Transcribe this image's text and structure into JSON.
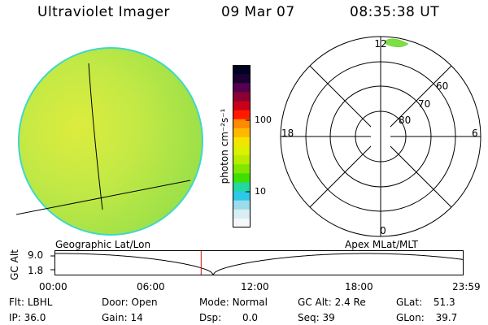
{
  "header": {
    "instrument": "Ultraviolet Imager",
    "date": "09 Mar 07",
    "time": "08:35:38 UT"
  },
  "colorbar": {
    "unit_label": "photon cm⁻²s⁻¹",
    "ticks": [
      "100",
      "10"
    ],
    "colors": [
      "#000022",
      "#1a0033",
      "#55004e",
      "#8a0034",
      "#c80018",
      "#ff1a00",
      "#ff8a00",
      "#ffb800",
      "#f2e600",
      "#dcf000",
      "#b8ec00",
      "#82e600",
      "#3ee000",
      "#22d8a0",
      "#30c8e8",
      "#9adcec",
      "#d8eef2",
      "#f4f8fa"
    ]
  },
  "polar": {
    "mlt_labels": {
      "top": "12",
      "bottom": "0",
      "left": "18",
      "right": "6"
    },
    "lat_labels": [
      "60",
      "70",
      "80"
    ]
  },
  "timeline": {
    "left_title": "Geographic Lat/Lon",
    "right_title": "Apex  MLat/MLT",
    "axis_label": "GC Alt",
    "y_ticks": [
      "9.0",
      "1.8"
    ],
    "x_ticks": [
      "00:00",
      "06:00",
      "12:00",
      "18:00",
      "23:59"
    ],
    "marker_hour": 8.59
  },
  "status": {
    "flt_label": "Flt:",
    "flt_value": "LBHL",
    "ip_label": "IP:",
    "ip_value": "36.0",
    "door_label": "Door:",
    "door_value": "Open",
    "gain_label": "Gain:",
    "gain_value": "14",
    "mode_label": "Mode:",
    "mode_value": "Normal",
    "dsp_label": "Dsp:",
    "dsp_value": "0.0",
    "gcalt_label": "GC Alt:",
    "gcalt_value": "2.4 Re",
    "seq_label": "Seq:",
    "seq_value": "39",
    "glat_label": "GLat:",
    "glat_value": "51.3",
    "glon_label": "GLon:",
    "glon_value": "39.7"
  }
}
